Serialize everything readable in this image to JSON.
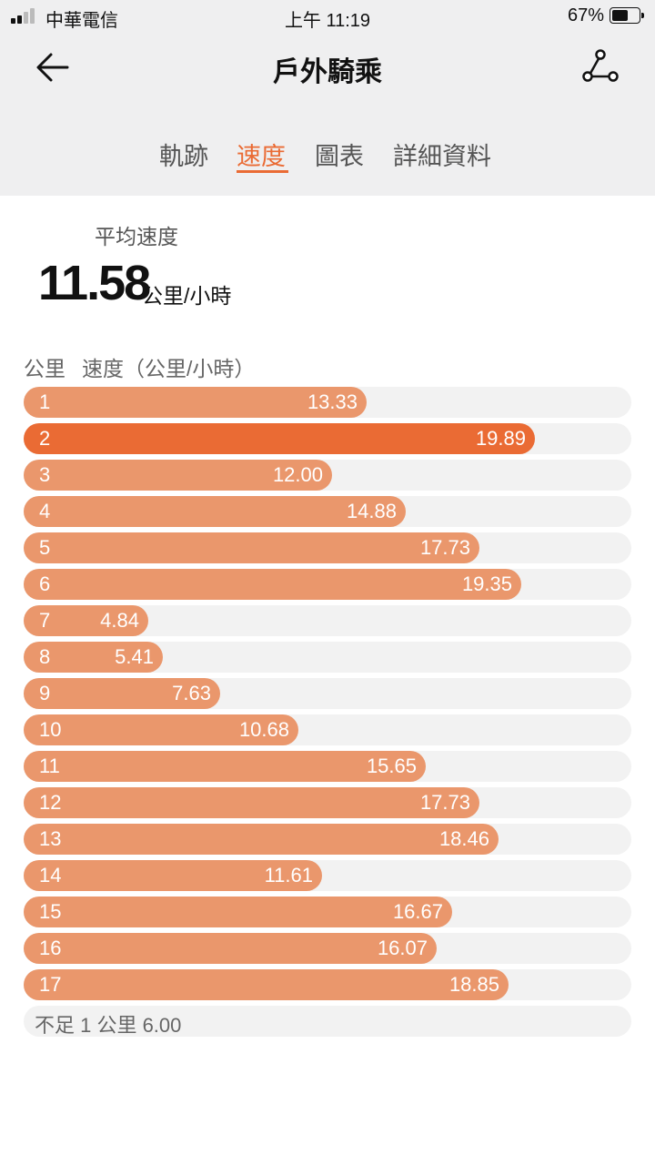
{
  "status_bar": {
    "carrier": "中華電信",
    "time": "上午 11:19",
    "battery": "67%",
    "battery_level": 0.67
  },
  "header": {
    "title": "戶外騎乘"
  },
  "tabs": [
    {
      "label": "軌跡",
      "active": false
    },
    {
      "label": "速度",
      "active": true
    },
    {
      "label": "圖表",
      "active": false
    },
    {
      "label": "詳細資料",
      "active": false
    }
  ],
  "summary": {
    "label": "平均速度",
    "value": "11.58",
    "unit": "公里/小時"
  },
  "table": {
    "col_km": "公里",
    "col_speed": "速度（公里/小時）",
    "max_speed": 19.89,
    "rows": [
      {
        "km": "1",
        "speed": "13.33",
        "highlight": false
      },
      {
        "km": "2",
        "speed": "19.89",
        "highlight": true
      },
      {
        "km": "3",
        "speed": "12.00",
        "highlight": false
      },
      {
        "km": "4",
        "speed": "14.88",
        "highlight": false
      },
      {
        "km": "5",
        "speed": "17.73",
        "highlight": false
      },
      {
        "km": "6",
        "speed": "19.35",
        "highlight": false
      },
      {
        "km": "7",
        "speed": "4.84",
        "highlight": false
      },
      {
        "km": "8",
        "speed": "5.41",
        "highlight": false
      },
      {
        "km": "9",
        "speed": "7.63",
        "highlight": false
      },
      {
        "km": "10",
        "speed": "10.68",
        "highlight": false
      },
      {
        "km": "11",
        "speed": "15.65",
        "highlight": false
      },
      {
        "km": "12",
        "speed": "17.73",
        "highlight": false
      },
      {
        "km": "13",
        "speed": "18.46",
        "highlight": false
      },
      {
        "km": "14",
        "speed": "11.61",
        "highlight": false
      },
      {
        "km": "15",
        "speed": "16.67",
        "highlight": false
      },
      {
        "km": "16",
        "speed": "16.07",
        "highlight": false
      },
      {
        "km": "17",
        "speed": "18.85",
        "highlight": false
      }
    ],
    "remainder": "不足 1 公里 6.00"
  },
  "colors": {
    "accent": "#ea6b34",
    "bar": "#ea976c",
    "track": "#f2f2f2"
  },
  "icons": {
    "back": "back-arrow-icon",
    "route": "route-icon"
  }
}
